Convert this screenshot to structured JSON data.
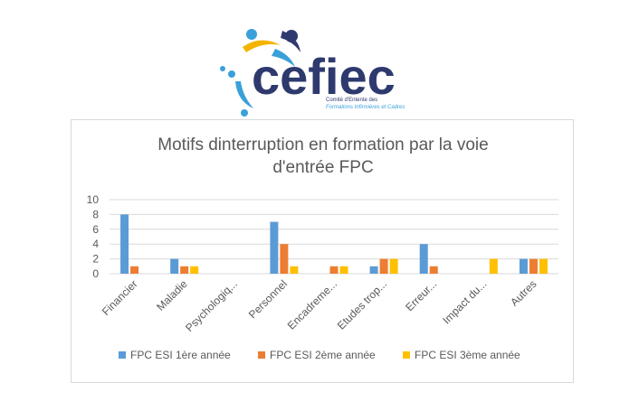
{
  "logo": {
    "wordmark": "ceﬁec",
    "line1": "Comité d'Entente des",
    "line2": "Formations Infirmières et Cadres"
  },
  "colors": {
    "series1": "#5b9bd5",
    "series2": "#ed7d31",
    "series3": "#ffc000",
    "grid": "#d9d9d9",
    "text": "#595959",
    "logo_navy": "#2e3a6e",
    "logo_blue": "#3aa0d9",
    "logo_yellow": "#f4b400"
  },
  "chart_data": {
    "type": "bar",
    "title_line1": "Motifs dinterruption en formation par la voie",
    "title_line2": "d'entrée FPC",
    "categories": [
      "Financier",
      "Maladie",
      "Psychologiq...",
      "Personnel",
      "Encadreme...",
      "Etudes trop...",
      "Erreur...",
      "Impact du...",
      "Autres"
    ],
    "series": [
      {
        "name": "FPC ESI 1ère année",
        "values": [
          8,
          2,
          0,
          7,
          0,
          1,
          4,
          0,
          2
        ]
      },
      {
        "name": "FPC ESI 2ème  année",
        "values": [
          1,
          1,
          0,
          4,
          1,
          2,
          1,
          0,
          2
        ]
      },
      {
        "name": "FPC ESI 3ème  année",
        "values": [
          0,
          1,
          0,
          1,
          1,
          2,
          0,
          2,
          2
        ]
      }
    ],
    "yticks": [
      "0",
      "2",
      "4",
      "6",
      "8",
      "10"
    ],
    "ylim": [
      0,
      10
    ],
    "grid": true,
    "legend_position": "bottom"
  }
}
